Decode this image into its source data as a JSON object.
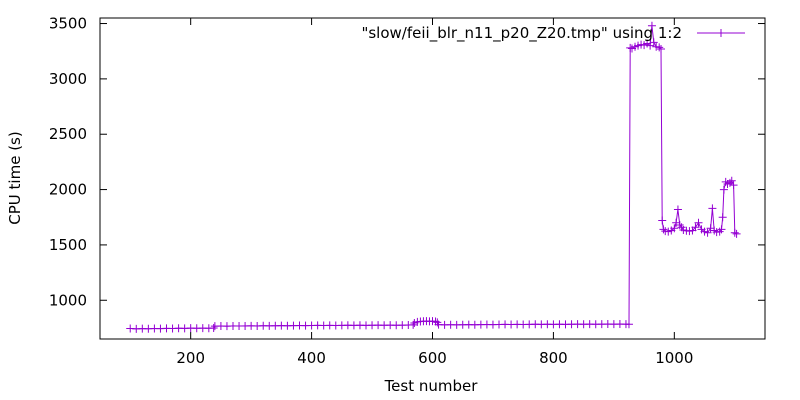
{
  "chart_data": {
    "type": "line",
    "title": "",
    "xlabel": "Test number",
    "ylabel": "CPU time (s)",
    "xlim": [
      50,
      1150
    ],
    "ylim": [
      650,
      3550
    ],
    "x_ticks": [
      200,
      400,
      600,
      800,
      1000
    ],
    "y_ticks": [
      1000,
      1500,
      2000,
      2500,
      3000,
      3500
    ],
    "x_tick_labels": [
      "200",
      "400",
      "600",
      "800",
      "1000"
    ],
    "y_tick_labels": [
      "1000",
      "1500",
      "2000",
      "2500",
      "3000",
      "3500"
    ],
    "grid": false,
    "legend_position": "top-right",
    "series": [
      {
        "name": "\"slow/feii_blr_n11_p20_Z20.tmp\" using 1:2",
        "color": "#9400d3",
        "marker": "plus",
        "points": [
          [
            100,
            745
          ],
          [
            110,
            742
          ],
          [
            120,
            744
          ],
          [
            130,
            743
          ],
          [
            140,
            745
          ],
          [
            150,
            744
          ],
          [
            160,
            746
          ],
          [
            170,
            745
          ],
          [
            180,
            747
          ],
          [
            190,
            746
          ],
          [
            200,
            748
          ],
          [
            210,
            747
          ],
          [
            220,
            748
          ],
          [
            230,
            747
          ],
          [
            238,
            749
          ],
          [
            240,
            766
          ],
          [
            250,
            767
          ],
          [
            260,
            766
          ],
          [
            270,
            768
          ],
          [
            280,
            767
          ],
          [
            290,
            768
          ],
          [
            300,
            769
          ],
          [
            310,
            768
          ],
          [
            320,
            770
          ],
          [
            330,
            769
          ],
          [
            340,
            770
          ],
          [
            350,
            771
          ],
          [
            360,
            770
          ],
          [
            370,
            771
          ],
          [
            380,
            772
          ],
          [
            390,
            771
          ],
          [
            400,
            772
          ],
          [
            410,
            773
          ],
          [
            420,
            772
          ],
          [
            430,
            773
          ],
          [
            440,
            772
          ],
          [
            450,
            773
          ],
          [
            460,
            774
          ],
          [
            470,
            773
          ],
          [
            480,
            774
          ],
          [
            490,
            773
          ],
          [
            500,
            774
          ],
          [
            510,
            775
          ],
          [
            520,
            774
          ],
          [
            530,
            775
          ],
          [
            540,
            774
          ],
          [
            550,
            775
          ],
          [
            560,
            776
          ],
          [
            568,
            778
          ],
          [
            570,
            795
          ],
          [
            575,
            805
          ],
          [
            580,
            808
          ],
          [
            585,
            810
          ],
          [
            590,
            812
          ],
          [
            595,
            809
          ],
          [
            600,
            811
          ],
          [
            605,
            808
          ],
          [
            608,
            800
          ],
          [
            610,
            780
          ],
          [
            620,
            778
          ],
          [
            630,
            779
          ],
          [
            640,
            778
          ],
          [
            650,
            779
          ],
          [
            660,
            780
          ],
          [
            670,
            779
          ],
          [
            680,
            780
          ],
          [
            690,
            781
          ],
          [
            700,
            780
          ],
          [
            710,
            781
          ],
          [
            720,
            782
          ],
          [
            730,
            781
          ],
          [
            740,
            782
          ],
          [
            750,
            781
          ],
          [
            760,
            782
          ],
          [
            770,
            783
          ],
          [
            780,
            782
          ],
          [
            790,
            783
          ],
          [
            800,
            782
          ],
          [
            810,
            783
          ],
          [
            820,
            782
          ],
          [
            830,
            783
          ],
          [
            840,
            784
          ],
          [
            850,
            783
          ],
          [
            860,
            784
          ],
          [
            870,
            783
          ],
          [
            880,
            784
          ],
          [
            890,
            785
          ],
          [
            900,
            784
          ],
          [
            910,
            785
          ],
          [
            920,
            784
          ],
          [
            925,
            783
          ],
          [
            927,
            3280
          ],
          [
            930,
            3275
          ],
          [
            935,
            3290
          ],
          [
            940,
            3300
          ],
          [
            945,
            3310
          ],
          [
            950,
            3305
          ],
          [
            955,
            3320
          ],
          [
            960,
            3300
          ],
          [
            963,
            3480
          ],
          [
            966,
            3330
          ],
          [
            970,
            3290
          ],
          [
            975,
            3285
          ],
          [
            978,
            3270
          ],
          [
            980,
            1720
          ],
          [
            982,
            1640
          ],
          [
            985,
            1625
          ],
          [
            990,
            1620
          ],
          [
            995,
            1630
          ],
          [
            1000,
            1650
          ],
          [
            1003,
            1700
          ],
          [
            1006,
            1820
          ],
          [
            1009,
            1680
          ],
          [
            1012,
            1660
          ],
          [
            1015,
            1635
          ],
          [
            1020,
            1628
          ],
          [
            1025,
            1625
          ],
          [
            1030,
            1630
          ],
          [
            1035,
            1660
          ],
          [
            1040,
            1700
          ],
          [
            1045,
            1640
          ],
          [
            1050,
            1620
          ],
          [
            1055,
            1610
          ],
          [
            1060,
            1650
          ],
          [
            1063,
            1830
          ],
          [
            1066,
            1630
          ],
          [
            1070,
            1615
          ],
          [
            1075,
            1620
          ],
          [
            1078,
            1640
          ],
          [
            1080,
            1750
          ],
          [
            1082,
            2000
          ],
          [
            1085,
            2070
          ],
          [
            1088,
            2050
          ],
          [
            1092,
            2060
          ],
          [
            1095,
            2080
          ],
          [
            1098,
            2040
          ],
          [
            1100,
            1610
          ],
          [
            1103,
            1600
          ]
        ]
      }
    ]
  }
}
